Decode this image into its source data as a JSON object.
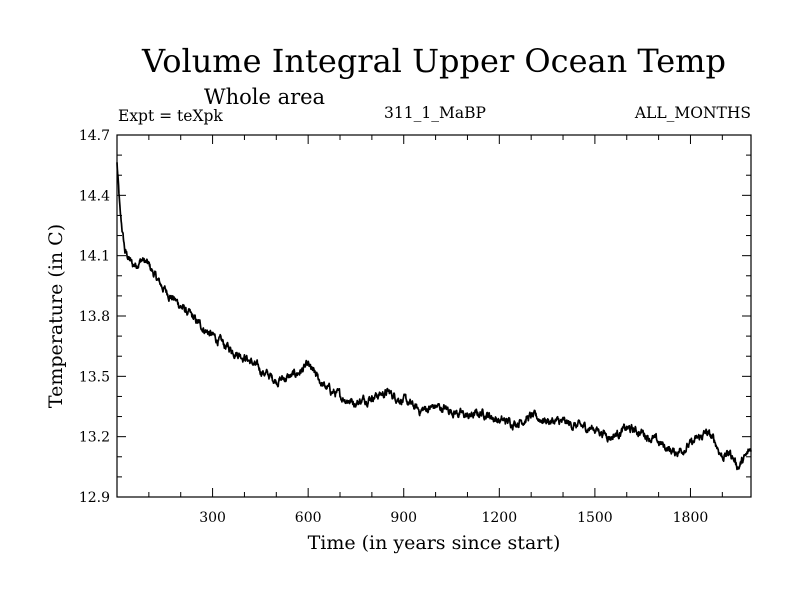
{
  "chart_data": {
    "type": "line",
    "title": "Volume Integral Upper Ocean Temp",
    "subtitle": "Whole area",
    "experiment": "Expt = teXpk",
    "run_id": "311_1_MaBP",
    "months": "ALL_MONTHS",
    "xlabel": "Time (in years since start)",
    "ylabel": "Temperature (in C)",
    "xlim": [
      0,
      1990
    ],
    "ylim": [
      12.9,
      14.7
    ],
    "x_ticks": [
      300,
      600,
      900,
      1200,
      1500,
      1800
    ],
    "y_ticks": [
      12.9,
      13.2,
      13.5,
      13.8,
      14.1,
      14.4,
      14.7
    ],
    "y_tick_labels": [
      "12.9",
      "13.2",
      "13.5",
      "13.8",
      "14.1",
      "14.4",
      "14.7"
    ],
    "grid": false,
    "series": [
      {
        "name": "Temperature",
        "color": "#000000",
        "x": [
          0,
          10,
          25,
          50,
          80,
          100,
          130,
          150,
          200,
          250,
          300,
          350,
          400,
          450,
          500,
          550,
          600,
          650,
          700,
          750,
          800,
          850,
          900,
          950,
          1000,
          1050,
          1100,
          1150,
          1200,
          1250,
          1300,
          1350,
          1400,
          1450,
          1500,
          1550,
          1600,
          1650,
          1700,
          1750,
          1800,
          1850,
          1875,
          1900,
          1925,
          1950,
          1975,
          1990
        ],
        "values": [
          14.56,
          14.3,
          14.12,
          14.05,
          14.08,
          14.05,
          13.97,
          13.93,
          13.85,
          13.77,
          13.7,
          13.64,
          13.6,
          13.53,
          13.48,
          13.5,
          13.55,
          13.45,
          13.4,
          13.37,
          13.4,
          13.42,
          13.38,
          13.33,
          13.35,
          13.33,
          13.3,
          13.32,
          13.28,
          13.27,
          13.3,
          13.28,
          13.27,
          13.25,
          13.24,
          13.2,
          13.24,
          13.22,
          13.17,
          13.12,
          13.16,
          13.22,
          13.18,
          13.1,
          13.12,
          13.05,
          13.1,
          13.14
        ]
      }
    ]
  }
}
